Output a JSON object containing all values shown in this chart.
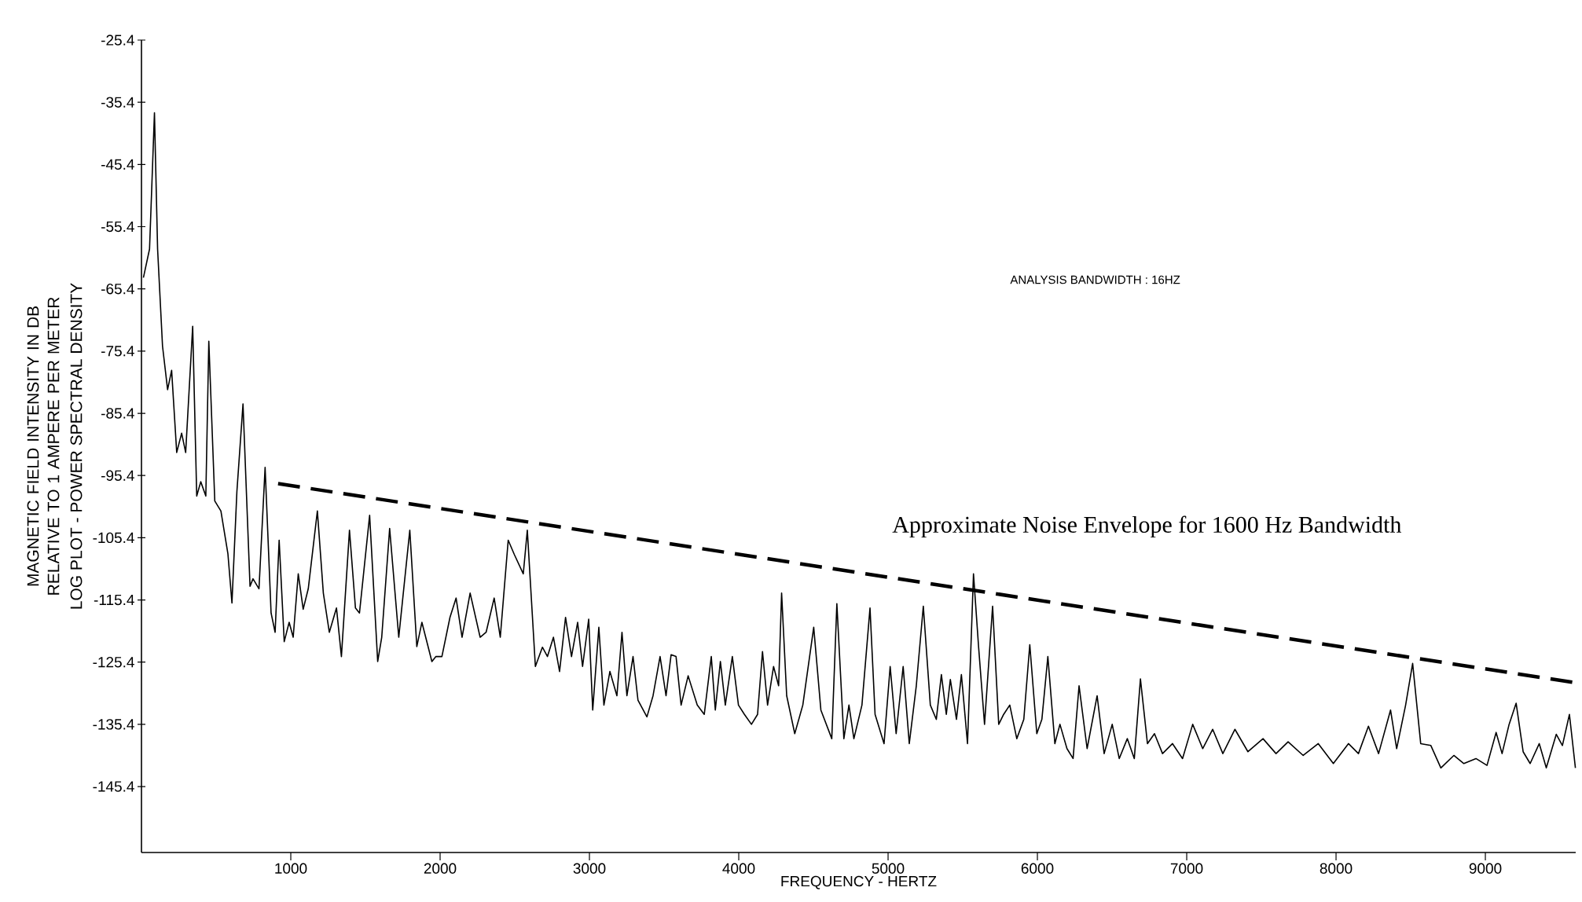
{
  "chart_data": {
    "type": "line",
    "xlabel": "FREQUENCY - HERTZ",
    "ylabel": "MAGNETIC FIELD INTENSITY IN DB RELATIVE TO 1 AMPERE PER METER",
    "annotations": [
      "ANALYSIS BANDWIDTH : 16HZ",
      "LOG PLOT - POWER SPECTRAL DENSITY",
      "Approximate Noise Envelope for 1600 Hz Bandwidth"
    ],
    "xlim": [
      0,
      9605
    ],
    "ylim": [
      -156,
      -25.4
    ],
    "xticks": [
      1000,
      2000,
      3000,
      4000,
      5000,
      6000,
      7000,
      8000,
      9000
    ],
    "yticks": [
      -25.4,
      -35.4,
      -45.4,
      -55.4,
      -65.4,
      -75.4,
      -85.4,
      -95.4,
      -105.4,
      -115.4,
      -125.4,
      -135.4,
      -145.4
    ],
    "line_style": "solid",
    "series": [
      {
        "color": "#000000",
        "x": [
          13,
          54,
          87,
          108,
          141,
          175,
          202,
          236,
          269,
          296,
          343,
          370,
          397,
          431,
          451,
          491,
          532,
          579,
          606,
          639,
          680,
          727,
          747,
          787,
          828,
          868,
          895,
          922,
          956,
          989,
          1016,
          1050,
          1083,
          1117,
          1178,
          1218,
          1258,
          1306,
          1339,
          1393,
          1433,
          1460,
          1528,
          1582,
          1609,
          1662,
          1723,
          1797,
          1844,
          1878,
          1945,
          1972,
          2012,
          2066,
          2107,
          2147,
          2201,
          2268,
          2308,
          2362,
          2403,
          2456,
          2497,
          2557,
          2584,
          2638,
          2685,
          2719,
          2759,
          2800,
          2840,
          2880,
          2921,
          2954,
          2995,
          3022,
          3063,
          3097,
          3137,
          3184,
          3218,
          3251,
          3292,
          3325,
          3385,
          3426,
          3473,
          3513,
          3547,
          3580,
          3614,
          3661,
          3722,
          3769,
          3816,
          3843,
          3877,
          3910,
          3957,
          3998,
          4038,
          4085,
          4126,
          4159,
          4193,
          4233,
          4267,
          4287,
          4321,
          4375,
          4429,
          4502,
          4550,
          4623,
          4657,
          4704,
          4738,
          4771,
          4825,
          4879,
          4913,
          4973,
          5014,
          5054,
          5101,
          5142,
          5189,
          5236,
          5283,
          5323,
          5357,
          5390,
          5417,
          5458,
          5491,
          5532,
          5572,
          5606,
          5646,
          5700,
          5741,
          5774,
          5815,
          5862,
          5909,
          5949,
          5996,
          6030,
          6070,
          6117,
          6151,
          6198,
          6239,
          6279,
          6333,
          6400,
          6447,
          6501,
          6548,
          6602,
          6649,
          6690,
          6737,
          6784,
          6838,
          6905,
          6972,
          7040,
          7107,
          7174,
          7242,
          7323,
          7410,
          7511,
          7598,
          7679,
          7780,
          7881,
          7982,
          8083,
          8150,
          8217,
          8285,
          8365,
          8406,
          8466,
          8513,
          8567,
          8635,
          8702,
          8789,
          8856,
          8937,
          9011,
          9072,
          9112,
          9159,
          9206,
          9253,
          9300,
          9361,
          9408,
          9475,
          9516,
          9563,
          9603
        ],
        "values": [
          -63.6,
          -59,
          -37.1,
          -59,
          -74.6,
          -81.6,
          -78.5,
          -91.7,
          -88.6,
          -91.7,
          -71.4,
          -98.7,
          -96.4,
          -98.7,
          -73.8,
          -99.5,
          -101.1,
          -108,
          -115.9,
          -98,
          -83.9,
          -113.2,
          -112,
          -113.6,
          -94.1,
          -117.5,
          -120.6,
          -105.8,
          -122.1,
          -119,
          -121.4,
          -111.2,
          -116.9,
          -113.6,
          -101.1,
          -114.3,
          -120.6,
          -116.7,
          -124.5,
          -104.2,
          -116.7,
          -117.5,
          -101.8,
          -125.3,
          -121.4,
          -103.9,
          -121.4,
          -104.2,
          -122.9,
          -119,
          -125.3,
          -124.5,
          -124.5,
          -118.2,
          -115.1,
          -121.4,
          -114.3,
          -121.4,
          -120.6,
          -115.1,
          -121.4,
          -105.8,
          -108.1,
          -111.2,
          -104.2,
          -126.1,
          -123,
          -124.5,
          -121.4,
          -126.9,
          -118.2,
          -124.5,
          -119,
          -126.1,
          -118.5,
          -133.1,
          -119.8,
          -132.3,
          -126.9,
          -130.8,
          -120.6,
          -130.8,
          -124.5,
          -131.5,
          -134.2,
          -130.8,
          -124.5,
          -130.8,
          -124.2,
          -124.5,
          -132.3,
          -127.6,
          -132.3,
          -133.8,
          -124.5,
          -133.1,
          -125.3,
          -132.3,
          -124.5,
          -132.3,
          -133.8,
          -135.4,
          -133.8,
          -123.7,
          -132.3,
          -126.1,
          -129.2,
          -114.3,
          -130.8,
          -136.9,
          -132.3,
          -119.8,
          -133.1,
          -137.7,
          -116,
          -137.7,
          -132.3,
          -137.7,
          -132.3,
          -116.7,
          -133.8,
          -138.5,
          -126.1,
          -136.9,
          -126.1,
          -138.5,
          -129.2,
          -116.4,
          -132.3,
          -134.6,
          -127.4,
          -133.8,
          -128.2,
          -134.6,
          -127.4,
          -138.5,
          -111.2,
          -122.9,
          -135.4,
          -116.4,
          -135.4,
          -133.8,
          -132.3,
          -137.7,
          -134.6,
          -122.6,
          -136.9,
          -134.6,
          -124.5,
          -138.5,
          -135.4,
          -139.3,
          -140.9,
          -129.2,
          -139.3,
          -130.8,
          -140.1,
          -135.4,
          -140.9,
          -137.7,
          -140.9,
          -128.1,
          -138.5,
          -136.9,
          -140.1,
          -138.5,
          -140.9,
          -135.4,
          -139.3,
          -136.2,
          -140.1,
          -136.2,
          -139.8,
          -137.7,
          -140.1,
          -138.2,
          -140.4,
          -138.5,
          -141.7,
          -138.5,
          -140.1,
          -135.7,
          -140.1,
          -133.1,
          -139.3,
          -132.3,
          -125.6,
          -138.5,
          -138.8,
          -142.4,
          -140.4,
          -141.7,
          -140.9,
          -142,
          -136.7,
          -140.1,
          -135.4,
          -132,
          -139.8,
          -141.7,
          -138.5,
          -142.4,
          -137,
          -138.8,
          -133.8,
          -142.4
        ]
      },
      {
        "color": "#000000",
        "line_style": "dashed",
        "x": [
          915,
          9600
        ],
        "values": [
          -96.7,
          -128.7
        ]
      }
    ]
  }
}
